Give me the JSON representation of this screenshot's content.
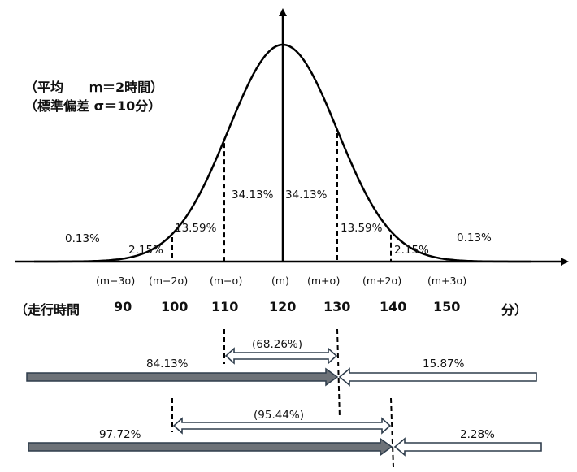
{
  "notes": {
    "mean": "（平均　　ｍ＝2時間）",
    "sd": "（標準偏差 σ＝10分）"
  },
  "region_labels": [
    "0.13%",
    "2.15%",
    "13.59%",
    "34.13%",
    "34.13%",
    "13.59%",
    "2.15%",
    "0.13%"
  ],
  "sigma_labels": [
    "(m−3σ)",
    "(m−2σ)",
    "(m−σ)",
    "(m)",
    "(m+σ)",
    "(m+2σ)",
    "(m+3σ)"
  ],
  "time_row": {
    "prefix": "（走行時間",
    "values": [
      "90",
      "100",
      "110",
      "120",
      "130",
      "140",
      "150"
    ],
    "unit": "分）"
  },
  "intervals": [
    {
      "span_label": "(68.26%)",
      "left_label": "84.13%",
      "right_label": "15.87%"
    },
    {
      "span_label": "(95.44%)",
      "left_label": "97.72%",
      "right_label": "2.28%"
    }
  ],
  "colors": {
    "line": "#000000",
    "bar_fill": "#6d7278",
    "bar_stroke": "#2f3d4c",
    "outline_stroke": "#2f3d4c"
  }
}
